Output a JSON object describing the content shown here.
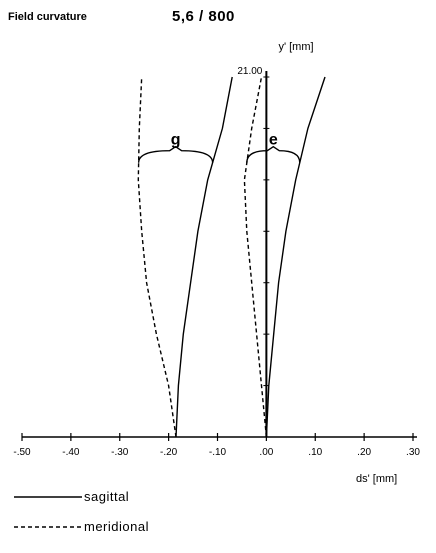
{
  "header": {
    "title": "Field curvature",
    "subtitle": "5,6 / 800"
  },
  "chart_data": {
    "type": "line",
    "title": "Field curvature",
    "subtitle": "5,6 / 800",
    "xlabel": "ds' [mm]",
    "ylabel": "y' [mm]",
    "xlim": [
      -0.5,
      0.3
    ],
    "ylim": [
      0,
      21.0
    ],
    "x_ticks": [
      -0.5,
      -0.4,
      -0.3,
      -0.2,
      -0.1,
      0.0,
      0.1,
      0.2,
      0.3
    ],
    "x_tick_labels": [
      "-.50",
      "-.40",
      "-.30",
      "-.20",
      "-.10",
      ".00",
      ".10",
      ".20",
      ".30"
    ],
    "y_max_label": "21.00",
    "grid": false,
    "groups": [
      {
        "label": "g",
        "series": [
          {
            "name": "sagittal",
            "style": "solid",
            "points": [
              [
                -0.185,
                0
              ],
              [
                -0.18,
                3
              ],
              [
                -0.17,
                6
              ],
              [
                -0.155,
                9
              ],
              [
                -0.14,
                12
              ],
              [
                -0.12,
                15
              ],
              [
                -0.09,
                18
              ],
              [
                -0.07,
                21
              ]
            ]
          },
          {
            "name": "meridional",
            "style": "dashed",
            "points": [
              [
                -0.185,
                0
              ],
              [
                -0.2,
                3
              ],
              [
                -0.225,
                6
              ],
              [
                -0.245,
                9
              ],
              [
                -0.255,
                12
              ],
              [
                -0.262,
                15
              ],
              [
                -0.26,
                18
              ],
              [
                -0.255,
                21
              ]
            ]
          }
        ]
      },
      {
        "label": "e",
        "series": [
          {
            "name": "sagittal",
            "style": "solid",
            "points": [
              [
                0.0,
                0
              ],
              [
                0.005,
                3
              ],
              [
                0.015,
                6
              ],
              [
                0.025,
                9
              ],
              [
                0.04,
                12
              ],
              [
                0.06,
                15
              ],
              [
                0.085,
                18
              ],
              [
                0.12,
                21
              ]
            ]
          },
          {
            "name": "meridional",
            "style": "dashed",
            "points": [
              [
                0.0,
                0
              ],
              [
                -0.01,
                3
              ],
              [
                -0.02,
                6
              ],
              [
                -0.03,
                9
              ],
              [
                -0.04,
                12
              ],
              [
                -0.045,
                15
              ],
              [
                -0.03,
                18
              ],
              [
                -0.01,
                21
              ]
            ]
          }
        ]
      }
    ],
    "legend": {
      "position": "bottom-left",
      "entries": [
        {
          "name": "sagittal",
          "style": "solid"
        },
        {
          "name": "meridional",
          "style": "dashed"
        }
      ]
    }
  }
}
